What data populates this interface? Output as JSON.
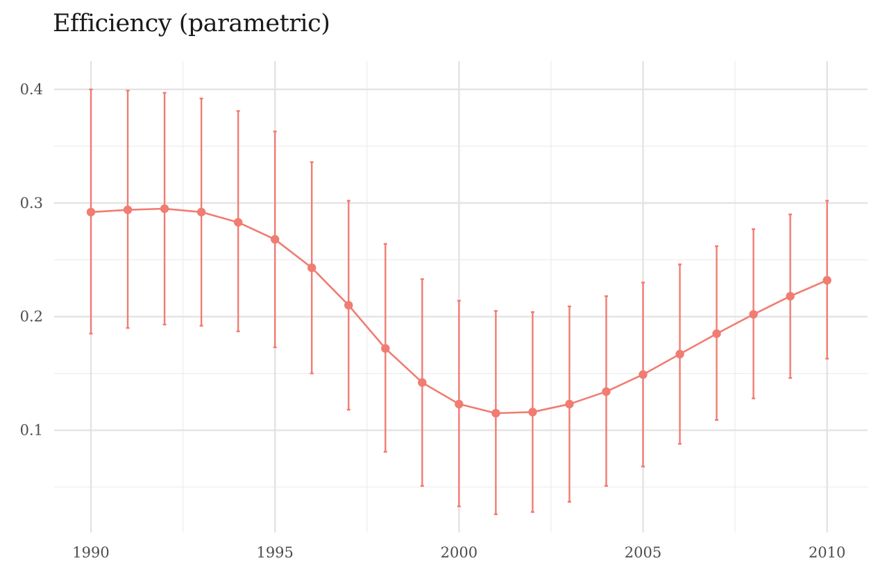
{
  "chart_data": {
    "type": "line",
    "title": "Efficiency (parametric)",
    "xlabel": "",
    "ylabel": "",
    "x": [
      1990,
      1991,
      1992,
      1993,
      1994,
      1995,
      1996,
      1997,
      1998,
      1999,
      2000,
      2001,
      2002,
      2003,
      2004,
      2005,
      2006,
      2007,
      2008,
      2009,
      2010
    ],
    "series": [
      {
        "values": [
          0.292,
          0.294,
          0.295,
          0.292,
          0.283,
          0.268,
          0.243,
          0.21,
          0.172,
          0.142,
          0.123,
          0.115,
          0.116,
          0.123,
          0.134,
          0.149,
          0.167,
          0.185,
          0.202,
          0.218,
          0.232
        ],
        "lower": [
          0.185,
          0.19,
          0.193,
          0.192,
          0.187,
          0.173,
          0.15,
          0.118,
          0.081,
          0.051,
          0.033,
          0.026,
          0.028,
          0.037,
          0.051,
          0.068,
          0.088,
          0.109,
          0.128,
          0.146,
          0.163
        ],
        "upper": [
          0.4,
          0.399,
          0.397,
          0.392,
          0.381,
          0.363,
          0.336,
          0.302,
          0.264,
          0.233,
          0.214,
          0.205,
          0.204,
          0.209,
          0.218,
          0.23,
          0.246,
          0.262,
          0.277,
          0.29,
          0.302
        ],
        "color": "#F07C72"
      }
    ],
    "x_ticks": [
      "1990",
      "1995",
      "2000",
      "2005",
      "2010"
    ],
    "y_ticks": [
      "0.1",
      "0.2",
      "0.3",
      "0.4"
    ],
    "xlim": [
      1989,
      2011.1
    ],
    "ylim": [
      0.01,
      0.425
    ],
    "grid": true,
    "legend": "none"
  }
}
